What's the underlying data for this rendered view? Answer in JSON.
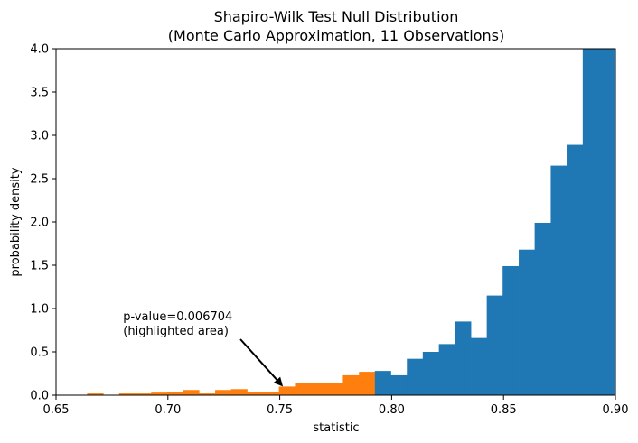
{
  "chart_data": {
    "type": "bar",
    "title_line1": "Shapiro-Wilk Test Null Distribution",
    "title_line2": "(Monte Carlo Approximation, 11 Observations)",
    "xlabel": "statistic",
    "ylabel": "probability density",
    "xlim": [
      0.65,
      0.9
    ],
    "ylim": [
      0,
      4.0
    ],
    "xticks": [
      "0.65",
      "0.70",
      "0.75",
      "0.80",
      "0.85",
      "0.90"
    ],
    "yticks": [
      "0.0",
      "0.5",
      "1.0",
      "1.5",
      "2.0",
      "2.5",
      "3.0",
      "3.5",
      "4.0"
    ],
    "grid": false,
    "annotation": {
      "line1": "p-value=0.006704",
      "line2": "(highlighted area)",
      "text_at": [
        0.68,
        0.72
      ],
      "arrow_to": [
        0.7514,
        0.1
      ]
    },
    "series": [
      {
        "color": "#ff7f0e",
        "bars": [
          {
            "x0": 0.6639,
            "x1": 0.6711,
            "y": 0.02
          },
          {
            "x0": 0.6782,
            "x1": 0.6854,
            "y": 0.02
          },
          {
            "x0": 0.6854,
            "x1": 0.6925,
            "y": 0.02
          },
          {
            "x0": 0.6925,
            "x1": 0.6996,
            "y": 0.03
          },
          {
            "x0": 0.6996,
            "x1": 0.7068,
            "y": 0.04
          },
          {
            "x0": 0.7068,
            "x1": 0.7139,
            "y": 0.06
          },
          {
            "x0": 0.7139,
            "x1": 0.7211,
            "y": 0.02
          },
          {
            "x0": 0.7211,
            "x1": 0.7282,
            "y": 0.06
          },
          {
            "x0": 0.7282,
            "x1": 0.7354,
            "y": 0.07
          },
          {
            "x0": 0.7354,
            "x1": 0.7425,
            "y": 0.04
          },
          {
            "x0": 0.7425,
            "x1": 0.7496,
            "y": 0.04
          },
          {
            "x0": 0.7496,
            "x1": 0.7568,
            "y": 0.1
          },
          {
            "x0": 0.7568,
            "x1": 0.7639,
            "y": 0.14
          },
          {
            "x0": 0.7639,
            "x1": 0.7711,
            "y": 0.14
          },
          {
            "x0": 0.7711,
            "x1": 0.7782,
            "y": 0.14
          },
          {
            "x0": 0.7782,
            "x1": 0.7854,
            "y": 0.23
          },
          {
            "x0": 0.7854,
            "x1": 0.7925,
            "y": 0.27
          }
        ]
      },
      {
        "color": "#1f77b4",
        "bars": [
          {
            "x0": 0.7925,
            "x1": 0.7996,
            "y": 0.28
          },
          {
            "x0": 0.7996,
            "x1": 0.8068,
            "y": 0.23
          },
          {
            "x0": 0.8068,
            "x1": 0.8139,
            "y": 0.42
          },
          {
            "x0": 0.8139,
            "x1": 0.8211,
            "y": 0.5
          },
          {
            "x0": 0.8211,
            "x1": 0.8282,
            "y": 0.59
          },
          {
            "x0": 0.8282,
            "x1": 0.8354,
            "y": 0.85
          },
          {
            "x0": 0.8354,
            "x1": 0.8425,
            "y": 0.66
          },
          {
            "x0": 0.8425,
            "x1": 0.8496,
            "y": 1.15
          },
          {
            "x0": 0.8496,
            "x1": 0.8568,
            "y": 1.49
          },
          {
            "x0": 0.8568,
            "x1": 0.8639,
            "y": 1.68
          },
          {
            "x0": 0.8639,
            "x1": 0.8711,
            "y": 1.99
          },
          {
            "x0": 0.8711,
            "x1": 0.8782,
            "y": 2.65
          },
          {
            "x0": 0.8782,
            "x1": 0.8854,
            "y": 2.89
          },
          {
            "x0": 0.8854,
            "x1": 0.89,
            "y": 4.1
          },
          {
            "x0": 0.89,
            "x1": 0.9,
            "y": 4.1
          }
        ]
      }
    ]
  }
}
